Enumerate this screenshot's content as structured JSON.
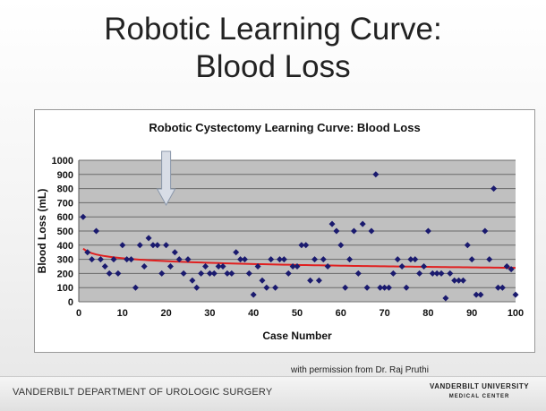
{
  "slide": {
    "title_line1": "Robotic Learning Curve:",
    "title_line2": "Blood Loss",
    "permission": "with permission from Dr. Raj Pruthi",
    "department": "VANDERBILT DEPARTMENT OF UROLOGIC SURGERY",
    "logo_line1": "VANDERBILT UNIVERSITY",
    "logo_line2": "MEDICAL CENTER"
  },
  "chart_data": {
    "type": "scatter",
    "title": "Robotic Cystectomy Learning Curve: Blood Loss",
    "xlabel": "Case Number",
    "ylabel": "Blood Loss (mL)",
    "xlim": [
      0,
      100
    ],
    "ylim": [
      0,
      1000
    ],
    "xticks": [
      0,
      10,
      20,
      30,
      40,
      50,
      60,
      70,
      80,
      90,
      100
    ],
    "yticks": [
      0,
      100,
      200,
      300,
      400,
      500,
      600,
      700,
      800,
      900,
      1000
    ],
    "grid": true,
    "legend": "none",
    "marker_color": "#1a1a6e",
    "trend_color": "#e02020",
    "plot_bg": "#c0c0c0",
    "annotation": {
      "type": "arrow",
      "x": 20
    },
    "values": [
      600,
      350,
      300,
      500,
      300,
      250,
      200,
      300,
      200,
      400,
      300,
      300,
      100,
      400,
      250,
      450,
      400,
      400,
      200,
      400,
      250,
      350,
      300,
      200,
      300,
      150,
      100,
      200,
      250,
      200,
      200,
      250,
      250,
      200,
      200,
      350,
      300,
      300,
      200,
      50,
      250,
      150,
      100,
      300,
      100,
      300,
      300,
      200,
      250,
      250,
      400,
      400,
      150,
      300,
      150,
      300,
      250,
      550,
      500,
      400,
      100,
      300,
      500,
      200,
      550,
      100,
      500,
      900,
      100,
      100,
      100,
      200,
      300,
      250,
      100,
      300,
      300,
      200,
      250,
      500,
      200,
      200,
      200,
      25,
      200,
      150,
      150,
      150,
      400,
      300,
      50,
      50,
      500,
      300,
      800,
      100,
      100,
      250,
      230,
      50
    ],
    "trend": {
      "type": "logarithmic",
      "start": 375,
      "end": 240
    }
  }
}
